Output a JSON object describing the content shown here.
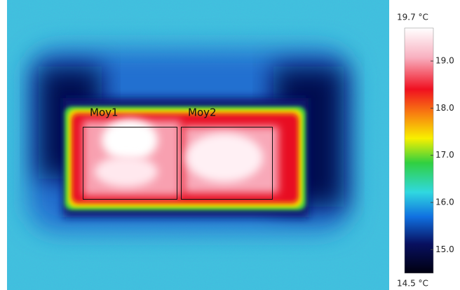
{
  "image": {
    "regions": [
      {
        "label": "Moy1"
      },
      {
        "label": "Moy2"
      }
    ]
  },
  "colorbar": {
    "max": {
      "value": 19.7,
      "label": "19.7 °C"
    },
    "min": {
      "value": 14.5,
      "label": "14.5 °C"
    },
    "ticks": [
      {
        "value": 19,
        "label": "19.0"
      },
      {
        "value": 18,
        "label": "18.0"
      },
      {
        "value": 17,
        "label": "17.0"
      },
      {
        "value": 16,
        "label": "16.0"
      },
      {
        "value": 15,
        "label": "15.0"
      }
    ]
  }
}
